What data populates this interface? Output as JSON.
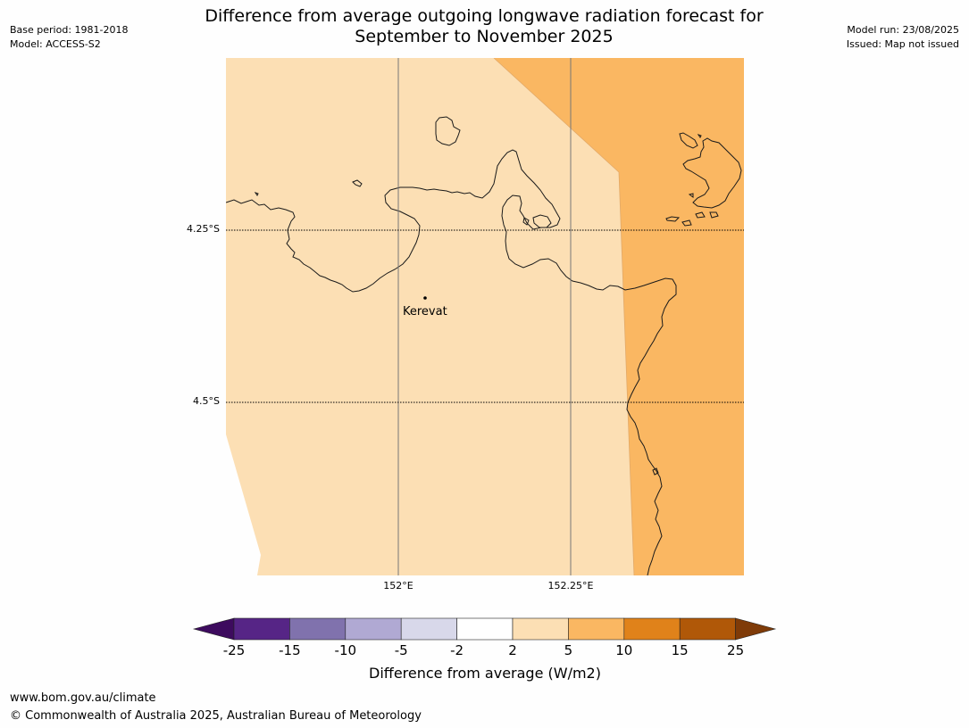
{
  "header": {
    "title_line1": "Difference from average outgoing longwave radiation forecast for",
    "title_line2": "September to November 2025",
    "base_period": "Base period: 1981-2018",
    "model": "Model: ACCESS-S2",
    "model_run": "Model run: 23/08/2025",
    "issued": "Issued: Map not issued"
  },
  "map": {
    "lat_labels": [
      "4.25°S",
      "4.5°S"
    ],
    "lon_labels": [
      "152°E",
      "152.25°E"
    ],
    "place": "Kerevat",
    "fill_colors": {
      "light": "#fcdfb4",
      "mid": "#fab762",
      "coast": "#1a1a1a",
      "grid": "#777777"
    }
  },
  "colorbar": {
    "ticks": [
      "-25",
      "-15",
      "-10",
      "-5",
      "-2",
      "2",
      "5",
      "10",
      "15",
      "25"
    ],
    "colors": [
      "#3d0b5e",
      "#562586",
      "#8072ad",
      "#b0a9d3",
      "#d8d8ea",
      "#ffffff",
      "#fcdfb4",
      "#fab762",
      "#e0821a",
      "#b05808",
      "#7f3b08"
    ],
    "label": "Difference from average (W/m2)"
  },
  "footer": {
    "url": "www.bom.gov.au/climate",
    "copyright": "© Commonwealth of Australia 2025, Australian Bureau of Meteorology"
  }
}
